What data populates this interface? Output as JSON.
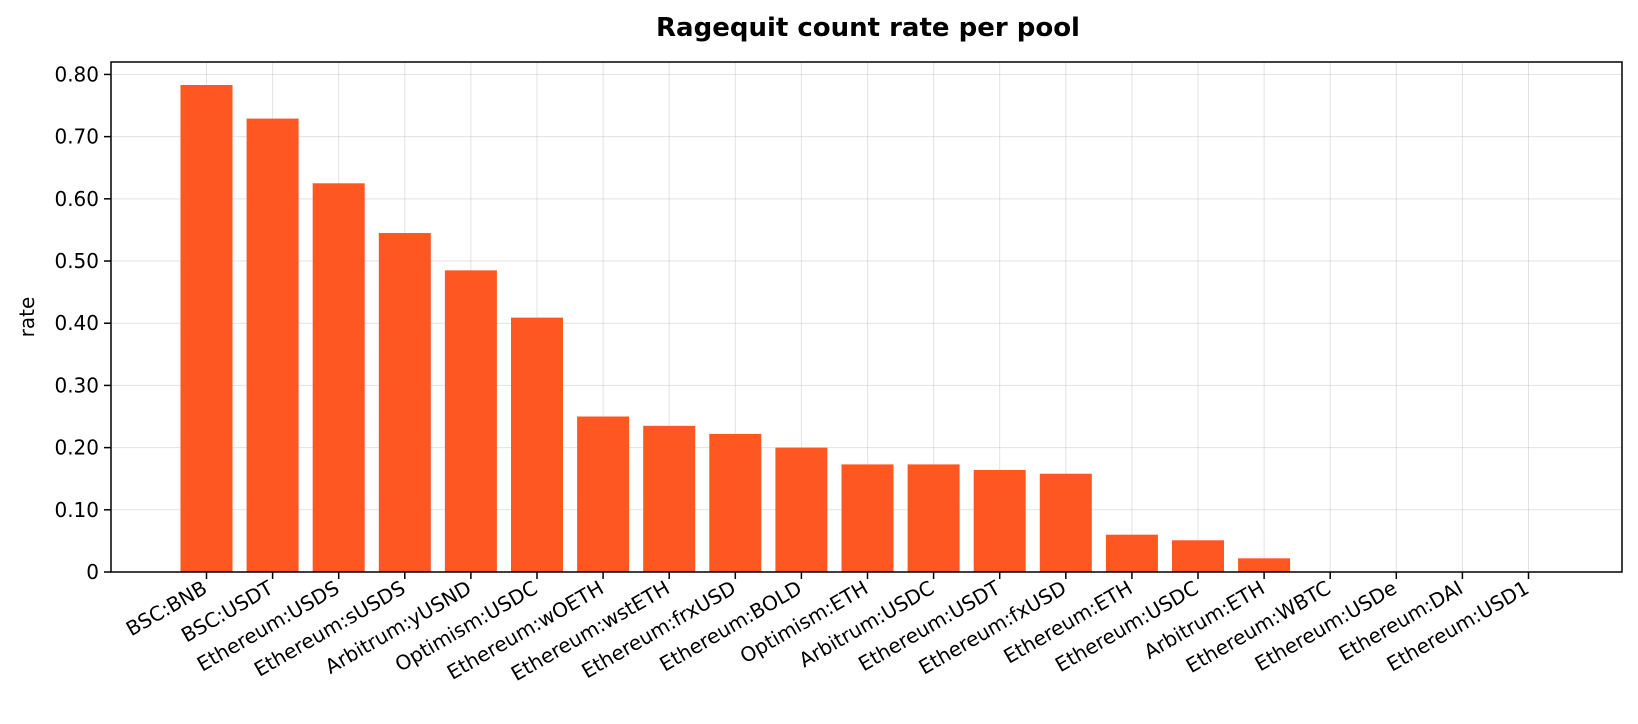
{
  "chart_data": {
    "type": "bar",
    "title": "Ragequit count rate per pool",
    "xlabel": "",
    "ylabel": "rate",
    "ylim": [
      0,
      0.82
    ],
    "yticks": [
      "0",
      "0.10",
      "0.20",
      "0.30",
      "0.40",
      "0.50",
      "0.60",
      "0.70",
      "0.80"
    ],
    "grid": true,
    "bar_color": "#ff5722",
    "categories": [
      "BSC:BNB",
      "BSC:USDT",
      "Ethereum:USDS",
      "Ethereum:sUSDS",
      "Arbitrum:yUSND",
      "Optimism:USDC",
      "Ethereum:wOETH",
      "Ethereum:wstETH",
      "Ethereum:frxUSD",
      "Ethereum:BOLD",
      "Optimism:ETH",
      "Arbitrum:USDC",
      "Ethereum:USDT",
      "Ethereum:fxUSD",
      "Ethereum:ETH",
      "Ethereum:USDC",
      "Arbitrum:ETH",
      "Ethereum:WBTC",
      "Ethereum:USDe",
      "Ethereum:DAI",
      "Ethereum:USD1"
    ],
    "values": [
      0.783,
      0.729,
      0.625,
      0.545,
      0.485,
      0.409,
      0.25,
      0.235,
      0.222,
      0.2,
      0.173,
      0.173,
      0.164,
      0.158,
      0.06,
      0.051,
      0.022,
      0,
      0,
      0,
      0
    ]
  }
}
